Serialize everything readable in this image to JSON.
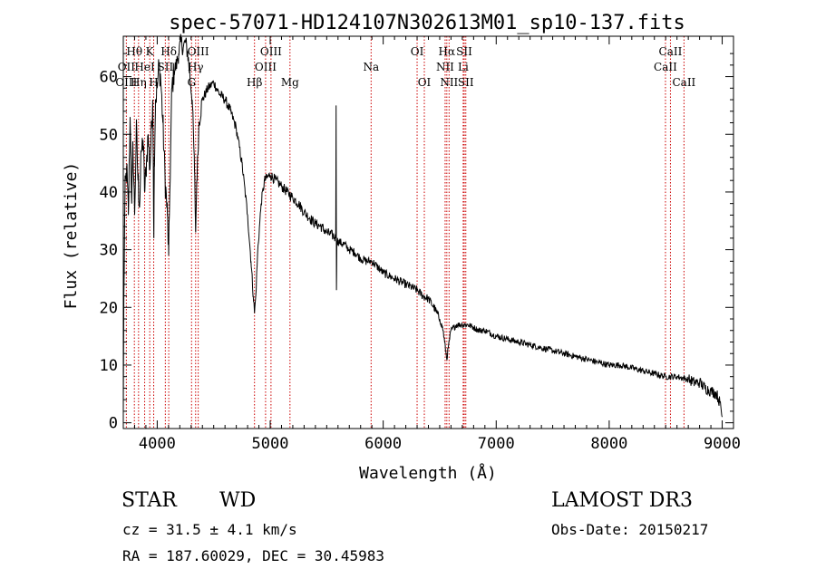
{
  "chart_data": {
    "type": "line",
    "title": "spec-57071-HD124107N302613M01_sp10-137.fits",
    "xlabel": "Wavelength (Å)",
    "ylabel": "Flux (relative)",
    "xlim": [
      3700,
      9100
    ],
    "ylim": [
      -1,
      67
    ],
    "xticks": [
      4000,
      5000,
      6000,
      7000,
      8000,
      9000
    ],
    "yticks": [
      0,
      10,
      20,
      30,
      40,
      50,
      60
    ],
    "grid": false,
    "series": [
      {
        "name": "spectrum",
        "anchors": [
          [
            3700,
            2
          ],
          [
            3705,
            22
          ],
          [
            3715,
            40
          ],
          [
            3730,
            44
          ],
          [
            3745,
            36
          ],
          [
            3760,
            53
          ],
          [
            3775,
            38
          ],
          [
            3785,
            48
          ],
          [
            3800,
            36
          ],
          [
            3815,
            51
          ],
          [
            3830,
            42
          ],
          [
            3845,
            38
          ],
          [
            3860,
            47
          ],
          [
            3875,
            49
          ],
          [
            3890,
            40
          ],
          [
            3905,
            45
          ],
          [
            3920,
            50
          ],
          [
            3935,
            44
          ],
          [
            3950,
            51
          ],
          [
            3960,
            56
          ],
          [
            3965,
            47
          ],
          [
            3970,
            32
          ],
          [
            3975,
            46
          ],
          [
            3985,
            56
          ],
          [
            4000,
            58
          ],
          [
            4015,
            62
          ],
          [
            4030,
            60
          ],
          [
            4050,
            52
          ],
          [
            4070,
            42
          ],
          [
            4090,
            36
          ],
          [
            4101,
            29
          ],
          [
            4112,
            40
          ],
          [
            4130,
            58
          ],
          [
            4150,
            61
          ],
          [
            4170,
            62
          ],
          [
            4190,
            64
          ],
          [
            4210,
            66
          ],
          [
            4230,
            65
          ],
          [
            4250,
            66
          ],
          [
            4270,
            64
          ],
          [
            4290,
            60
          ],
          [
            4310,
            56
          ],
          [
            4330,
            44
          ],
          [
            4340,
            33
          ],
          [
            4350,
            42
          ],
          [
            4370,
            52
          ],
          [
            4400,
            56
          ],
          [
            4450,
            58
          ],
          [
            4500,
            59
          ],
          [
            4550,
            57
          ],
          [
            4600,
            56
          ],
          [
            4650,
            54
          ],
          [
            4700,
            51
          ],
          [
            4750,
            45
          ],
          [
            4800,
            36
          ],
          [
            4830,
            28
          ],
          [
            4850,
            22
          ],
          [
            4861,
            19
          ],
          [
            4872,
            22
          ],
          [
            4890,
            30
          ],
          [
            4920,
            38
          ],
          [
            4950,
            42
          ],
          [
            5000,
            43
          ],
          [
            5050,
            42
          ],
          [
            5100,
            41
          ],
          [
            5150,
            40
          ],
          [
            5200,
            39
          ],
          [
            5250,
            38
          ],
          [
            5300,
            36.5
          ],
          [
            5350,
            35.5
          ],
          [
            5400,
            34.5
          ],
          [
            5450,
            34
          ],
          [
            5500,
            33
          ],
          [
            5550,
            32.5
          ],
          [
            5580,
            32
          ],
          [
            5583,
            55
          ],
          [
            5586,
            23
          ],
          [
            5590,
            31.5
          ],
          [
            5650,
            31
          ],
          [
            5700,
            30
          ],
          [
            5750,
            29.5
          ],
          [
            5800,
            28.5
          ],
          [
            5850,
            28
          ],
          [
            5900,
            28
          ],
          [
            5950,
            27
          ],
          [
            6000,
            26
          ],
          [
            6050,
            25.5
          ],
          [
            6100,
            25
          ],
          [
            6150,
            24.5
          ],
          [
            6200,
            24
          ],
          [
            6250,
            23.5
          ],
          [
            6300,
            23
          ],
          [
            6350,
            22
          ],
          [
            6400,
            21.5
          ],
          [
            6450,
            20
          ],
          [
            6500,
            18
          ],
          [
            6530,
            16
          ],
          [
            6550,
            13
          ],
          [
            6563,
            11
          ],
          [
            6576,
            13
          ],
          [
            6600,
            16
          ],
          [
            6650,
            17
          ],
          [
            6700,
            17
          ],
          [
            6750,
            17
          ],
          [
            6800,
            16.5
          ],
          [
            6850,
            16
          ],
          [
            6900,
            16
          ],
          [
            6950,
            15.5
          ],
          [
            7000,
            15
          ],
          [
            7100,
            14.5
          ],
          [
            7200,
            14
          ],
          [
            7300,
            13.5
          ],
          [
            7400,
            13
          ],
          [
            7500,
            12.5
          ],
          [
            7600,
            12
          ],
          [
            7700,
            11.5
          ],
          [
            7800,
            11
          ],
          [
            7900,
            10.5
          ],
          [
            8000,
            10
          ],
          [
            8100,
            10
          ],
          [
            8200,
            9.5
          ],
          [
            8300,
            9
          ],
          [
            8400,
            8.5
          ],
          [
            8500,
            8
          ],
          [
            8600,
            8
          ],
          [
            8700,
            7.5
          ],
          [
            8750,
            7
          ],
          [
            8800,
            7
          ],
          [
            8850,
            6
          ],
          [
            8900,
            5.5
          ],
          [
            8950,
            5
          ],
          [
            8980,
            3.5
          ],
          [
            9000,
            1
          ]
        ]
      }
    ],
    "line_labels": [
      {
        "label": "Hθ",
        "wl": 3798,
        "row": 0
      },
      {
        "label": "K",
        "wl": 3934,
        "row": 0
      },
      {
        "label": "Hδ",
        "wl": 4102,
        "row": 0
      },
      {
        "label": "OIII",
        "wl": 4363,
        "row": 0
      },
      {
        "label": "OIII",
        "wl": 5007,
        "row": 0
      },
      {
        "label": "OI",
        "wl": 6300,
        "row": 0
      },
      {
        "label": "Hα",
        "wl": 6563,
        "row": 0
      },
      {
        "label": "SII",
        "wl": 6717,
        "row": 0
      },
      {
        "label": "CaII",
        "wl": 8542,
        "row": 0
      },
      {
        "label": "OII",
        "wl": 3727,
        "row": 1
      },
      {
        "label": "HeI",
        "wl": 3889,
        "row": 1
      },
      {
        "label": "SII",
        "wl": 4072,
        "row": 1
      },
      {
        "label": "Hγ",
        "wl": 4340,
        "row": 1
      },
      {
        "label": "OIII",
        "wl": 4959,
        "row": 1
      },
      {
        "label": "Na",
        "wl": 5893,
        "row": 1
      },
      {
        "label": "NII",
        "wl": 6548,
        "row": 1
      },
      {
        "label": "Li",
        "wl": 6708,
        "row": 1
      },
      {
        "label": "CaII",
        "wl": 8498,
        "row": 1
      },
      {
        "label": "OIII",
        "wl": 3727,
        "row": 2
      },
      {
        "label": "Hη",
        "wl": 3835,
        "row": 2
      },
      {
        "label": "H",
        "wl": 3969,
        "row": 2
      },
      {
        "label": "G",
        "wl": 4304,
        "row": 2
      },
      {
        "label": "Hβ",
        "wl": 4861,
        "row": 2
      },
      {
        "label": "Mg",
        "wl": 5175,
        "row": 2
      },
      {
        "label": "OI",
        "wl": 6364,
        "row": 2
      },
      {
        "label": "NII",
        "wl": 6583,
        "row": 2
      },
      {
        "label": "SII",
        "wl": 6731,
        "row": 2
      },
      {
        "label": "CaII",
        "wl": 8662,
        "row": 2
      }
    ],
    "line_markers": [
      3727,
      3798,
      3835,
      3889,
      3934,
      3969,
      4072,
      4102,
      4304,
      4340,
      4363,
      4861,
      4959,
      5007,
      5175,
      5893,
      6300,
      6364,
      6548,
      6563,
      6583,
      6708,
      6717,
      6731,
      8498,
      8542,
      8662
    ],
    "marker_color": "#cc0000"
  },
  "info": {
    "class_label": "STAR",
    "subclass_label": "WD",
    "survey": "LAMOST DR3",
    "cz": "cz = 31.5 ± 4.1 km/s",
    "obs_date": "Obs-Date: 20150217",
    "radec": "RA = 187.60029, DEC =  30.45983"
  }
}
